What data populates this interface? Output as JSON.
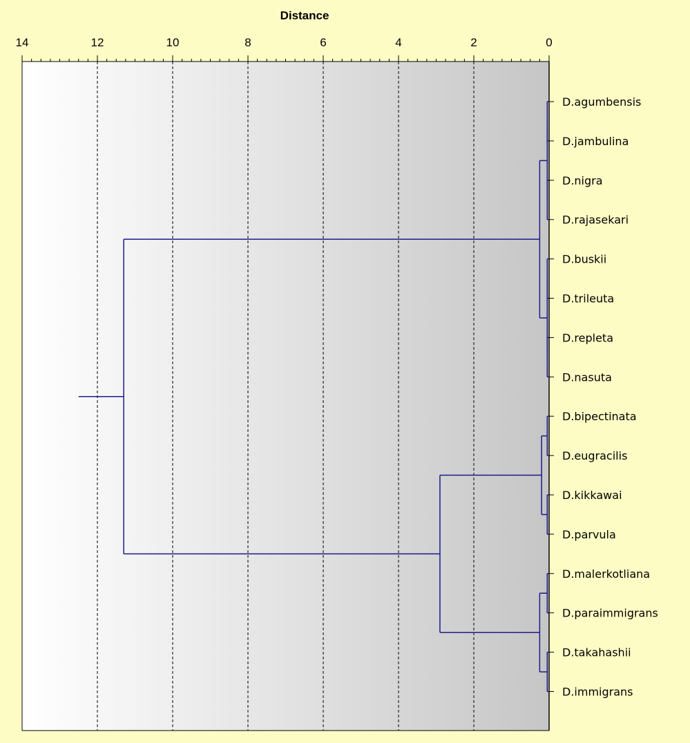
{
  "chart_data": {
    "type": "dendrogram",
    "title": "Distance",
    "x_axis": {
      "label": "Distance",
      "ticks": [
        "14",
        "12",
        "10",
        "8",
        "6",
        "4",
        "2",
        "0"
      ],
      "range": [
        14,
        0
      ],
      "reversed": true,
      "grid": "dashed vertical lines at even ticks"
    },
    "leaves": [
      "D.agumbensis",
      "D.jambulina",
      "D.nigra",
      "D.rajasekari",
      "D.buskii",
      "D.trileuta",
      "D.repleta",
      "D.nasuta",
      "D.bipectinata",
      "D.eugracilis",
      "D.kikkawai",
      "D.parvula",
      "D.malerkotliana",
      "D.paraimmigrans",
      "D.takahashii",
      "D.immigrans"
    ],
    "merges": [
      {
        "id": "m1",
        "children": [
          "L0",
          "L1"
        ],
        "height": 0.05
      },
      {
        "id": "m2",
        "children": [
          "L2",
          "L3"
        ],
        "height": 0.05
      },
      {
        "id": "m3",
        "children": [
          "m1",
          "m2"
        ],
        "height": 0.05
      },
      {
        "id": "m4",
        "children": [
          "L4",
          "L5"
        ],
        "height": 0.05
      },
      {
        "id": "m5",
        "children": [
          "L6",
          "L7"
        ],
        "height": 0.05
      },
      {
        "id": "m6",
        "children": [
          "m4",
          "m5"
        ],
        "height": 0.05
      },
      {
        "id": "m7",
        "children": [
          "m3",
          "m6"
        ],
        "height": 0.25
      },
      {
        "id": "m8",
        "children": [
          "L8",
          "L9"
        ],
        "height": 0.05
      },
      {
        "id": "m9",
        "children": [
          "L10",
          "L11"
        ],
        "height": 0.05
      },
      {
        "id": "m10",
        "children": [
          "m8",
          "m9"
        ],
        "height": 0.2
      },
      {
        "id": "m11",
        "children": [
          "L12",
          "L13"
        ],
        "height": 0.05
      },
      {
        "id": "m12",
        "children": [
          "L14",
          "L15"
        ],
        "height": 0.05
      },
      {
        "id": "m13",
        "children": [
          "m11",
          "m12"
        ],
        "height": 0.25
      },
      {
        "id": "m14",
        "children": [
          "m10",
          "m13"
        ],
        "height": 2.9
      },
      {
        "id": "m15",
        "children": [
          "m7",
          "m14"
        ],
        "height": 11.3
      }
    ],
    "root_stub_end": 12.5,
    "colors": {
      "background": "#fefcc5",
      "tree": "#1a1a8c",
      "grid": "#000000",
      "plot_gradient_left": "#ffffff",
      "plot_gradient_right": "#c6c6c6"
    }
  }
}
